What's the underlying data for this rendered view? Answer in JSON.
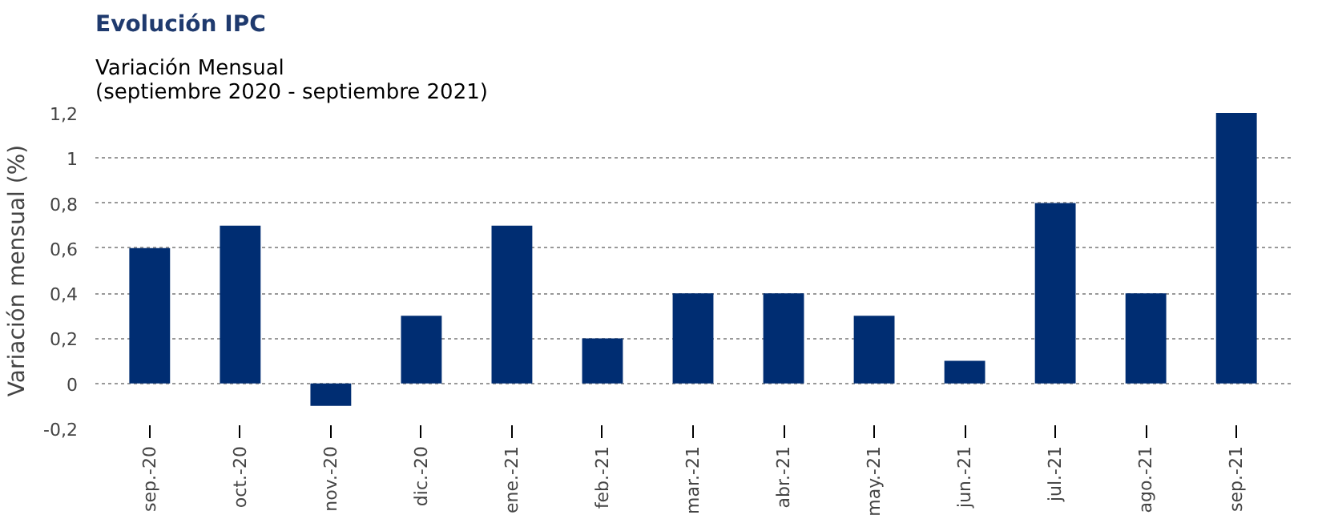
{
  "chart_data": {
    "type": "bar",
    "title": "Evolución IPC",
    "subtitle": "Variación Mensual\n(septiembre 2020 - septiembre 2021)",
    "ylabel": "Variación mensual (%)",
    "categories": [
      "sep.-20",
      "oct.-20",
      "nov.-20",
      "dic.-20",
      "ene.-21",
      "feb.-21",
      "mar.-21",
      "abr.-21",
      "may.-21",
      "jun.-21",
      "jul.-21",
      "ago.-21",
      "sep.-21"
    ],
    "values": [
      0.6,
      0.7,
      -0.1,
      0.3,
      0.7,
      0.2,
      0.4,
      0.4,
      0.3,
      0.1,
      0.8,
      0.4,
      1.2
    ],
    "color": "#002d72",
    "ylim": [
      -0.2,
      1.2
    ],
    "yticks": [
      {
        "value": -0.2,
        "label": "-0,2"
      },
      0,
      {
        "value": 0.2,
        "label": "0,2"
      },
      {
        "value": 0.4,
        "label": "0,4"
      },
      {
        "value": 0.6,
        "label": "0,6"
      },
      {
        "value": 0.8,
        "label": "0,8"
      },
      1,
      {
        "value": 1.2,
        "label": "1,2"
      }
    ],
    "grid": "y"
  }
}
